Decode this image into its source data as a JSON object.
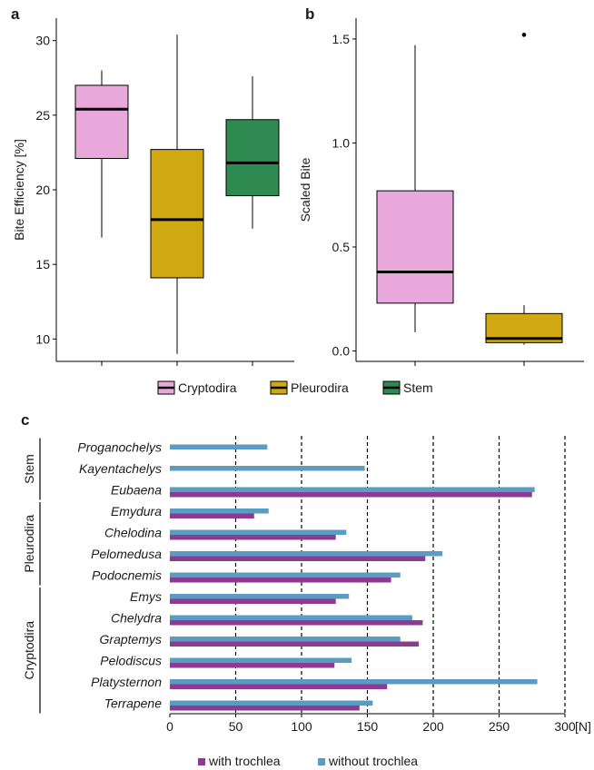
{
  "chart_data": [
    {
      "panel": "a",
      "type": "box",
      "ylabel": "Bite Efficiency [%]",
      "ylim": [
        8.5,
        31.5
      ],
      "yticks": [
        10,
        15,
        20,
        25,
        30
      ],
      "boxes": [
        {
          "name": "Cryptodira",
          "min": 16.8,
          "q1": 22.1,
          "median": 25.4,
          "q3": 27.0,
          "max": 28.0,
          "outliers": []
        },
        {
          "name": "Pleurodira",
          "min": 9.0,
          "q1": 14.1,
          "median": 18.0,
          "q3": 22.7,
          "max": 30.4,
          "outliers": []
        },
        {
          "name": "Stem",
          "min": 17.4,
          "q1": 19.6,
          "median": 21.8,
          "q3": 24.7,
          "max": 27.6,
          "outliers": []
        }
      ]
    },
    {
      "panel": "b",
      "type": "box",
      "ylabel": "Scaled Bite",
      "ylim": [
        -0.05,
        1.6
      ],
      "yticks": [
        "0.0",
        "0.5",
        "1.0",
        "1.5"
      ],
      "boxes": [
        {
          "name": "Cryptodira",
          "min": 0.09,
          "q1": 0.23,
          "median": 0.38,
          "q3": 0.77,
          "max": 1.47,
          "outliers": []
        },
        {
          "name": "Pleurodira",
          "min": 0.03,
          "q1": 0.04,
          "median": 0.06,
          "q3": 0.18,
          "max": 0.22,
          "outliers": [
            1.52
          ]
        }
      ]
    },
    {
      "panel": "c",
      "type": "bar",
      "orientation": "horizontal",
      "x_unit": "[N]",
      "xlim": [
        0,
        300
      ],
      "xticks": [
        0,
        50,
        100,
        150,
        200,
        250,
        300
      ],
      "categories": [
        "Proganochelys",
        "Kayentachelys",
        "Eubaena",
        "Emydura",
        "Chelodina",
        "Pelomedusa",
        "Podocnemis",
        "Emys",
        "Chelydra",
        "Graptemys",
        "Pelodiscus",
        "Platysternon",
        "Terrapene"
      ],
      "series": [
        {
          "name": "without trochlea",
          "values": [
            74,
            148,
            277,
            75,
            134,
            207,
            175,
            136,
            184,
            175,
            138,
            279,
            154
          ]
        },
        {
          "name": "with trochlea",
          "values": [
            null,
            null,
            275,
            64,
            126,
            194,
            168,
            126,
            192,
            189,
            125,
            165,
            144
          ]
        }
      ],
      "groups": [
        {
          "name": "Stem",
          "from": 0,
          "to": 2
        },
        {
          "name": "Pleurodira",
          "from": 3,
          "to": 6
        },
        {
          "name": "Cryptodira",
          "from": 7,
          "to": 12
        }
      ]
    }
  ],
  "labels": {
    "a": "a",
    "b": "b",
    "c": "c"
  },
  "legend_top": [
    "Cryptodira",
    "Pleurodira",
    "Stem"
  ],
  "legend_bottom": [
    "with trochlea",
    "without trochlea"
  ],
  "colors": {
    "Cryptodira": "#e8a8dc",
    "Pleurodira": "#cfa812",
    "Stem": "#2e8a50",
    "with_trochlea": "#8e3a92",
    "without_trochlea": "#5a9cc4"
  }
}
